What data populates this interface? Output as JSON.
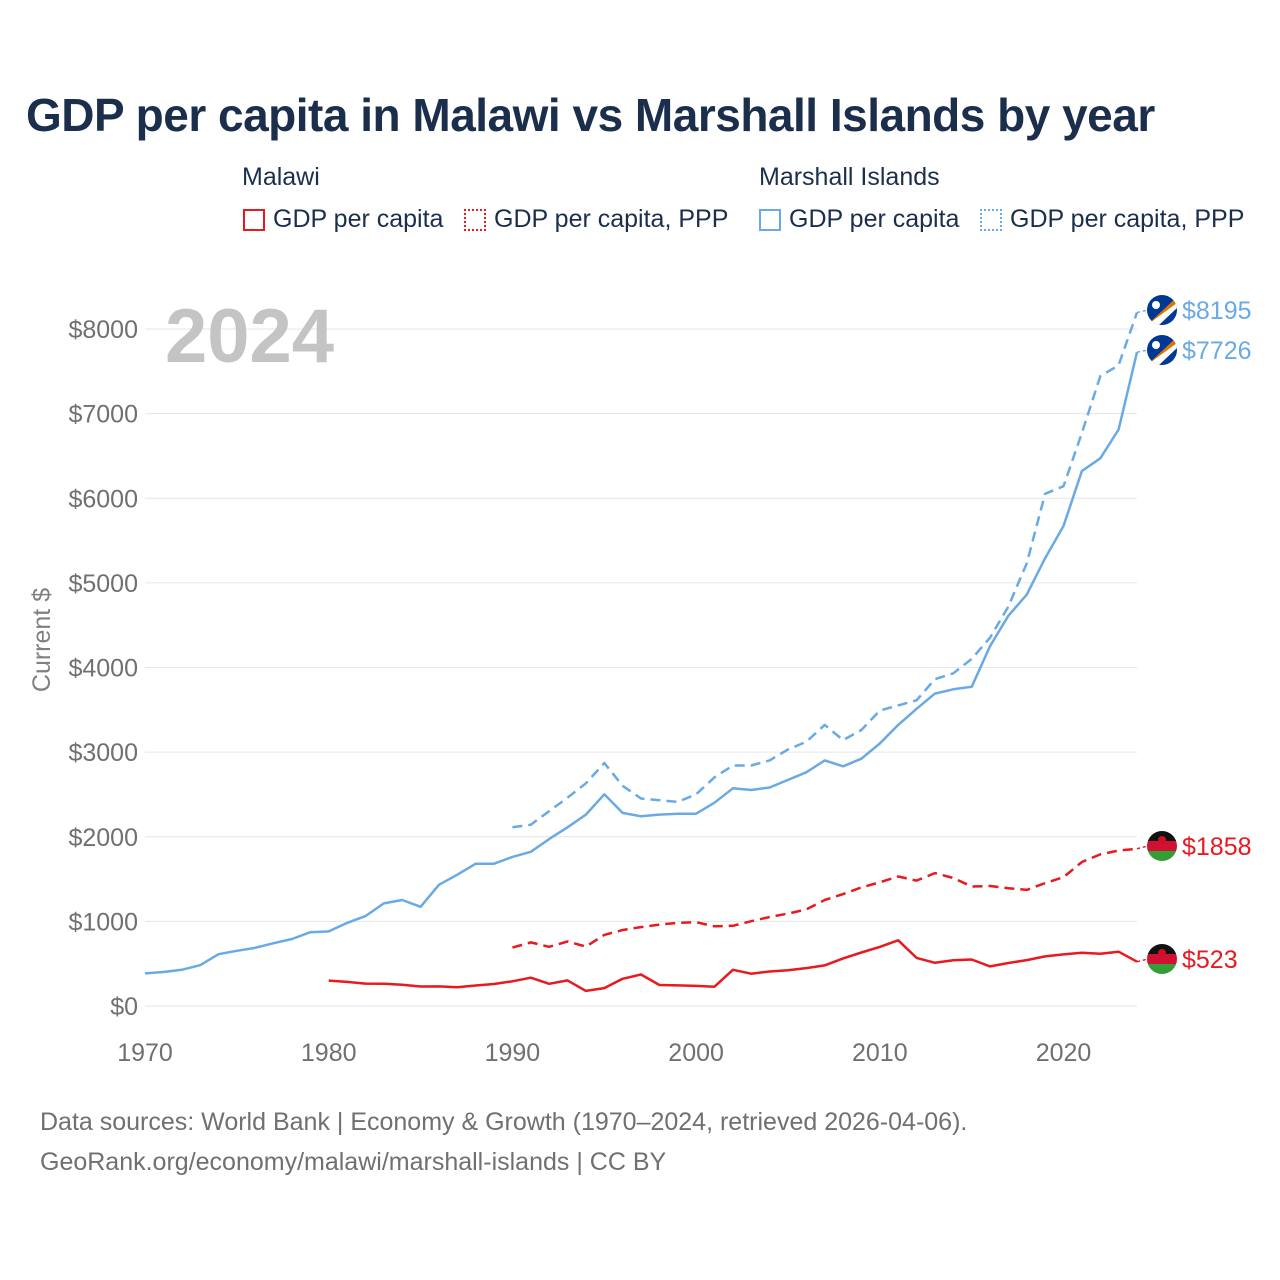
{
  "chart_data": {
    "type": "line",
    "title": "GDP per capita in Malawi vs Marshall Islands by year",
    "ylabel": "Current $",
    "xlabel": "",
    "year_label": "2024",
    "xlim": [
      1970,
      2024
    ],
    "ylim": [
      0,
      8400
    ],
    "x_ticks": [
      "1970",
      "1980",
      "1990",
      "2000",
      "2010",
      "2020"
    ],
    "y_ticks": [
      "$0",
      "$1000",
      "$2000",
      "$3000",
      "$4000",
      "$5000",
      "$6000",
      "$7000",
      "$8000"
    ],
    "legend": {
      "groups": [
        {
          "name": "Malawi",
          "items": [
            "GDP per capita",
            "GDP per capita, PPP"
          ]
        },
        {
          "name": "Marshall Islands",
          "items": [
            "GDP per capita",
            "GDP per capita, PPP"
          ]
        }
      ]
    },
    "series": [
      {
        "name": "Malawi GDP per capita",
        "color": "#e8191f",
        "dash": "solid",
        "end_label": "$523",
        "flag": "malawi",
        "x": [
          1980,
          1981,
          1982,
          1983,
          1984,
          1985,
          1986,
          1987,
          1988,
          1989,
          1990,
          1991,
          1992,
          1993,
          1994,
          1995,
          1996,
          1997,
          1998,
          1999,
          2000,
          2001,
          2002,
          2003,
          2004,
          2005,
          2006,
          2007,
          2008,
          2009,
          2010,
          2011,
          2012,
          2013,
          2014,
          2015,
          2016,
          2017,
          2018,
          2019,
          2020,
          2021,
          2022,
          2023,
          2024
        ],
        "values": [
          300,
          285,
          265,
          262,
          250,
          230,
          232,
          222,
          242,
          260,
          292,
          334,
          262,
          302,
          178,
          212,
          322,
          372,
          248,
          244,
          238,
          228,
          428,
          382,
          408,
          422,
          448,
          480,
          562,
          632,
          698,
          776,
          568,
          510,
          540,
          550,
          468,
          508,
          542,
          586,
          610,
          630,
          618,
          642,
          523
        ]
      },
      {
        "name": "Malawi GDP per capita, PPP",
        "color": "#e8191f",
        "dash": "dashed",
        "end_label": "$1858",
        "flag": "malawi",
        "x": [
          1990,
          1991,
          1992,
          1993,
          1994,
          1995,
          1996,
          1997,
          1998,
          1999,
          2000,
          2001,
          2002,
          2003,
          2004,
          2005,
          2006,
          2007,
          2008,
          2009,
          2010,
          2011,
          2012,
          2013,
          2014,
          2015,
          2016,
          2017,
          2018,
          2019,
          2020,
          2021,
          2022,
          2023,
          2024
        ],
        "values": [
          690,
          752,
          700,
          762,
          702,
          840,
          898,
          932,
          962,
          982,
          990,
          942,
          948,
          1002,
          1052,
          1092,
          1142,
          1252,
          1322,
          1402,
          1462,
          1530,
          1482,
          1570,
          1512,
          1412,
          1418,
          1392,
          1372,
          1452,
          1522,
          1702,
          1792,
          1838,
          1858
        ]
      },
      {
        "name": "Marshall Islands GDP per capita",
        "color": "#6aaae4",
        "dash": "solid",
        "end_label": "$7726",
        "flag": "marshall-islands",
        "x": [
          1970,
          1971,
          1972,
          1973,
          1974,
          1975,
          1976,
          1977,
          1978,
          1979,
          1980,
          1981,
          1982,
          1983,
          1984,
          1985,
          1986,
          1987,
          1988,
          1989,
          1990,
          1991,
          1992,
          1993,
          1994,
          1995,
          1996,
          1997,
          1998,
          1999,
          2000,
          2001,
          2002,
          2003,
          2004,
          2005,
          2006,
          2007,
          2008,
          2009,
          2010,
          2011,
          2012,
          2013,
          2014,
          2015,
          2016,
          2017,
          2018,
          2019,
          2020,
          2021,
          2022,
          2023,
          2024
        ],
        "values": [
          385,
          402,
          428,
          482,
          612,
          652,
          688,
          742,
          792,
          872,
          882,
          982,
          1062,
          1212,
          1252,
          1172,
          1432,
          1552,
          1682,
          1682,
          1762,
          1822,
          1972,
          2112,
          2262,
          2502,
          2282,
          2242,
          2262,
          2272,
          2272,
          2402,
          2572,
          2552,
          2582,
          2672,
          2762,
          2902,
          2832,
          2922,
          3102,
          3322,
          3512,
          3692,
          3742,
          3772,
          4252,
          4612,
          4862,
          5292,
          5672,
          6322,
          6472,
          6812,
          7726
        ]
      },
      {
        "name": "Marshall Islands GDP per capita, PPP",
        "color": "#6aaae4",
        "dash": "dashed",
        "end_label": "$8195",
        "flag": "marshall-islands",
        "x": [
          1990,
          1991,
          1992,
          1993,
          1994,
          1995,
          1996,
          1997,
          1998,
          1999,
          2000,
          2001,
          2002,
          2003,
          2004,
          2005,
          2006,
          2007,
          2008,
          2009,
          2010,
          2011,
          2012,
          2013,
          2014,
          2015,
          2016,
          2017,
          2018,
          2019,
          2020,
          2021,
          2022,
          2023,
          2024
        ],
        "values": [
          2112,
          2142,
          2302,
          2462,
          2632,
          2872,
          2602,
          2452,
          2432,
          2412,
          2502,
          2702,
          2842,
          2842,
          2902,
          3032,
          3122,
          3322,
          3142,
          3262,
          3492,
          3552,
          3612,
          3862,
          3932,
          4102,
          4352,
          4722,
          5232,
          6052,
          6142,
          6772,
          7442,
          7572,
          8195
        ]
      }
    ]
  },
  "footer": {
    "line1": "Data sources: World Bank | Economy & Growth (1970–2024, retrieved 2026-04-06).",
    "line2": "GeoRank.org/economy/malawi/marshall-islands | CC BY"
  }
}
